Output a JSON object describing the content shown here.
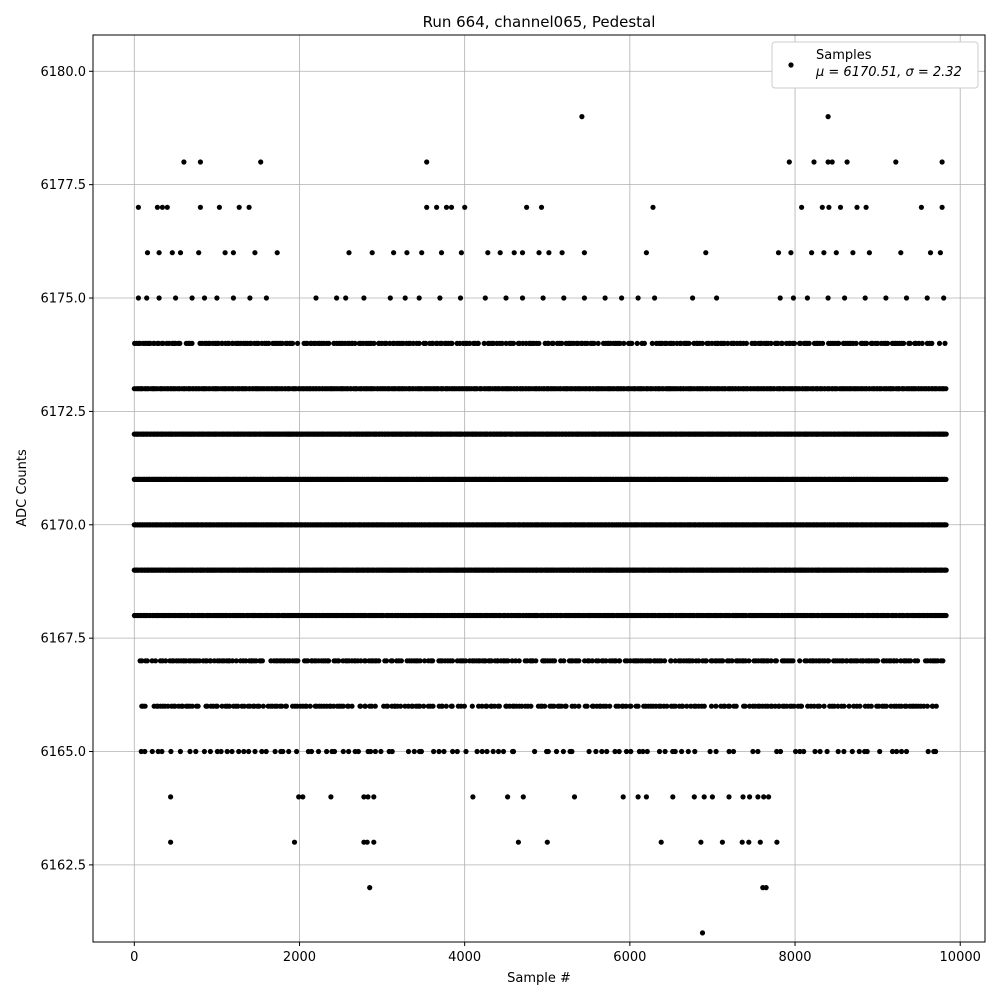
{
  "chart_data": {
    "type": "scatter",
    "title": "Run 664, channel065, Pedestal",
    "xlabel": "Sample #",
    "ylabel": "ADC Counts",
    "xlim": [
      -500,
      10300
    ],
    "ylim": [
      6160.8,
      6180.8
    ],
    "xticks": [
      0,
      2000,
      4000,
      6000,
      8000,
      10000
    ],
    "xtick_labels": [
      "0",
      "2000",
      "4000",
      "6000",
      "8000",
      "10000"
    ],
    "yticks": [
      6162.5,
      6165.0,
      6167.5,
      6170.0,
      6172.5,
      6175.0,
      6177.5,
      6180.0
    ],
    "ytick_labels": [
      "6162.5",
      "6165.0",
      "6167.5",
      "6170.0",
      "6172.5",
      "6175.0",
      "6177.5",
      "6180.0"
    ],
    "grid": true,
    "legend": {
      "placement": "top-right",
      "label": "Samples",
      "stats": "μ = 6170.51, σ = 2.32"
    },
    "series": [
      {
        "name": "Samples",
        "color": "#000000",
        "points": [
          [
            5420,
            6179
          ],
          [
            8400,
            6179
          ],
          [
            600,
            6178
          ],
          [
            800,
            6178
          ],
          [
            1530,
            6178
          ],
          [
            3540,
            6178
          ],
          [
            7930,
            6178
          ],
          [
            8230,
            6178
          ],
          [
            8400,
            6178
          ],
          [
            8450,
            6178
          ],
          [
            8630,
            6178
          ],
          [
            9220,
            6178
          ],
          [
            9780,
            6178
          ],
          [
            50,
            6177
          ],
          [
            280,
            6177
          ],
          [
            340,
            6177
          ],
          [
            400,
            6177
          ],
          [
            800,
            6177
          ],
          [
            1030,
            6177
          ],
          [
            1270,
            6177
          ],
          [
            1390,
            6177
          ],
          [
            3540,
            6177
          ],
          [
            3660,
            6177
          ],
          [
            3780,
            6177
          ],
          [
            3840,
            6177
          ],
          [
            4000,
            6177
          ],
          [
            4750,
            6177
          ],
          [
            4930,
            6177
          ],
          [
            6280,
            6177
          ],
          [
            8080,
            6177
          ],
          [
            8330,
            6177
          ],
          [
            8410,
            6177
          ],
          [
            8550,
            6177
          ],
          [
            8750,
            6177
          ],
          [
            8860,
            6177
          ],
          [
            9530,
            6177
          ],
          [
            9780,
            6177
          ],
          [
            160,
            6176
          ],
          [
            300,
            6176
          ],
          [
            460,
            6176
          ],
          [
            560,
            6176
          ],
          [
            780,
            6176
          ],
          [
            1100,
            6176
          ],
          [
            1200,
            6176
          ],
          [
            1460,
            6176
          ],
          [
            1730,
            6176
          ],
          [
            2600,
            6176
          ],
          [
            2880,
            6176
          ],
          [
            3140,
            6176
          ],
          [
            3300,
            6176
          ],
          [
            3480,
            6176
          ],
          [
            3720,
            6176
          ],
          [
            3960,
            6176
          ],
          [
            4280,
            6176
          ],
          [
            4430,
            6176
          ],
          [
            4600,
            6176
          ],
          [
            4700,
            6176
          ],
          [
            4900,
            6176
          ],
          [
            5020,
            6176
          ],
          [
            5180,
            6176
          ],
          [
            5450,
            6176
          ],
          [
            6200,
            6176
          ],
          [
            6920,
            6176
          ],
          [
            7800,
            6176
          ],
          [
            7950,
            6176
          ],
          [
            8200,
            6176
          ],
          [
            8350,
            6176
          ],
          [
            8500,
            6176
          ],
          [
            8700,
            6176
          ],
          [
            8900,
            6176
          ],
          [
            9280,
            6176
          ],
          [
            9640,
            6176
          ],
          [
            9760,
            6176
          ],
          [
            50,
            6175
          ],
          [
            150,
            6175
          ],
          [
            300,
            6175
          ],
          [
            500,
            6175
          ],
          [
            700,
            6175
          ],
          [
            850,
            6175
          ],
          [
            1000,
            6175
          ],
          [
            1200,
            6175
          ],
          [
            1400,
            6175
          ],
          [
            1600,
            6175
          ],
          [
            2200,
            6175
          ],
          [
            2450,
            6175
          ],
          [
            2560,
            6175
          ],
          [
            2780,
            6175
          ],
          [
            3100,
            6175
          ],
          [
            3280,
            6175
          ],
          [
            3450,
            6175
          ],
          [
            3700,
            6175
          ],
          [
            3950,
            6175
          ],
          [
            4250,
            6175
          ],
          [
            4500,
            6175
          ],
          [
            4700,
            6175
          ],
          [
            4950,
            6175
          ],
          [
            5200,
            6175
          ],
          [
            5450,
            6175
          ],
          [
            5700,
            6175
          ],
          [
            5900,
            6175
          ],
          [
            6100,
            6175
          ],
          [
            6300,
            6175
          ],
          [
            6760,
            6175
          ],
          [
            7050,
            6175
          ],
          [
            7820,
            6175
          ],
          [
            7980,
            6175
          ],
          [
            8150,
            6175
          ],
          [
            8400,
            6175
          ],
          [
            8600,
            6175
          ],
          [
            8850,
            6175
          ],
          [
            9100,
            6175
          ],
          [
            9350,
            6175
          ],
          [
            9600,
            6175
          ],
          [
            9800,
            6175
          ],
          [
            440,
            6164
          ],
          [
            1990,
            6164
          ],
          [
            2040,
            6164
          ],
          [
            2380,
            6164
          ],
          [
            2780,
            6164
          ],
          [
            2830,
            6164
          ],
          [
            2900,
            6164
          ],
          [
            4100,
            6164
          ],
          [
            4520,
            6164
          ],
          [
            4710,
            6164
          ],
          [
            5330,
            6164
          ],
          [
            5920,
            6164
          ],
          [
            6100,
            6164
          ],
          [
            6200,
            6164
          ],
          [
            6520,
            6164
          ],
          [
            6780,
            6164
          ],
          [
            6900,
            6164
          ],
          [
            7000,
            6164
          ],
          [
            7200,
            6164
          ],
          [
            7370,
            6164
          ],
          [
            7450,
            6164
          ],
          [
            7550,
            6164
          ],
          [
            7620,
            6164
          ],
          [
            7680,
            6164
          ],
          [
            440,
            6163
          ],
          [
            1940,
            6163
          ],
          [
            2780,
            6163
          ],
          [
            2820,
            6163
          ],
          [
            2900,
            6163
          ],
          [
            4650,
            6163
          ],
          [
            5000,
            6163
          ],
          [
            6380,
            6163
          ],
          [
            6860,
            6163
          ],
          [
            7120,
            6163
          ],
          [
            7360,
            6163
          ],
          [
            7440,
            6163
          ],
          [
            7580,
            6163
          ],
          [
            7780,
            6163
          ],
          [
            2850,
            6162
          ],
          [
            7610,
            6162
          ],
          [
            7650,
            6162
          ],
          [
            6880,
            6161
          ]
        ],
        "bands": [
          {
            "y": 6174,
            "x_from": 0,
            "x_to": 9830,
            "step": 25
          },
          {
            "y": 6173,
            "x_from": 0,
            "x_to": 9830,
            "step": 18
          },
          {
            "y": 6172,
            "x_from": 0,
            "x_to": 9830,
            "step": 14
          },
          {
            "y": 6171,
            "x_from": 0,
            "x_to": 9830,
            "step": 12
          },
          {
            "y": 6170,
            "x_from": 0,
            "x_to": 9830,
            "step": 12
          },
          {
            "y": 6169,
            "x_from": 0,
            "x_to": 9830,
            "step": 14
          },
          {
            "y": 6168,
            "x_from": 0,
            "x_to": 9830,
            "step": 18
          },
          {
            "y": 6167,
            "x_from": 60,
            "x_to": 9800,
            "step": 25
          },
          {
            "y": 6166,
            "x_from": 80,
            "x_to": 9780,
            "step": 30
          },
          {
            "y": 6165,
            "x_from": 0,
            "x_to": 9770,
            "step": 70
          }
        ]
      }
    ]
  }
}
